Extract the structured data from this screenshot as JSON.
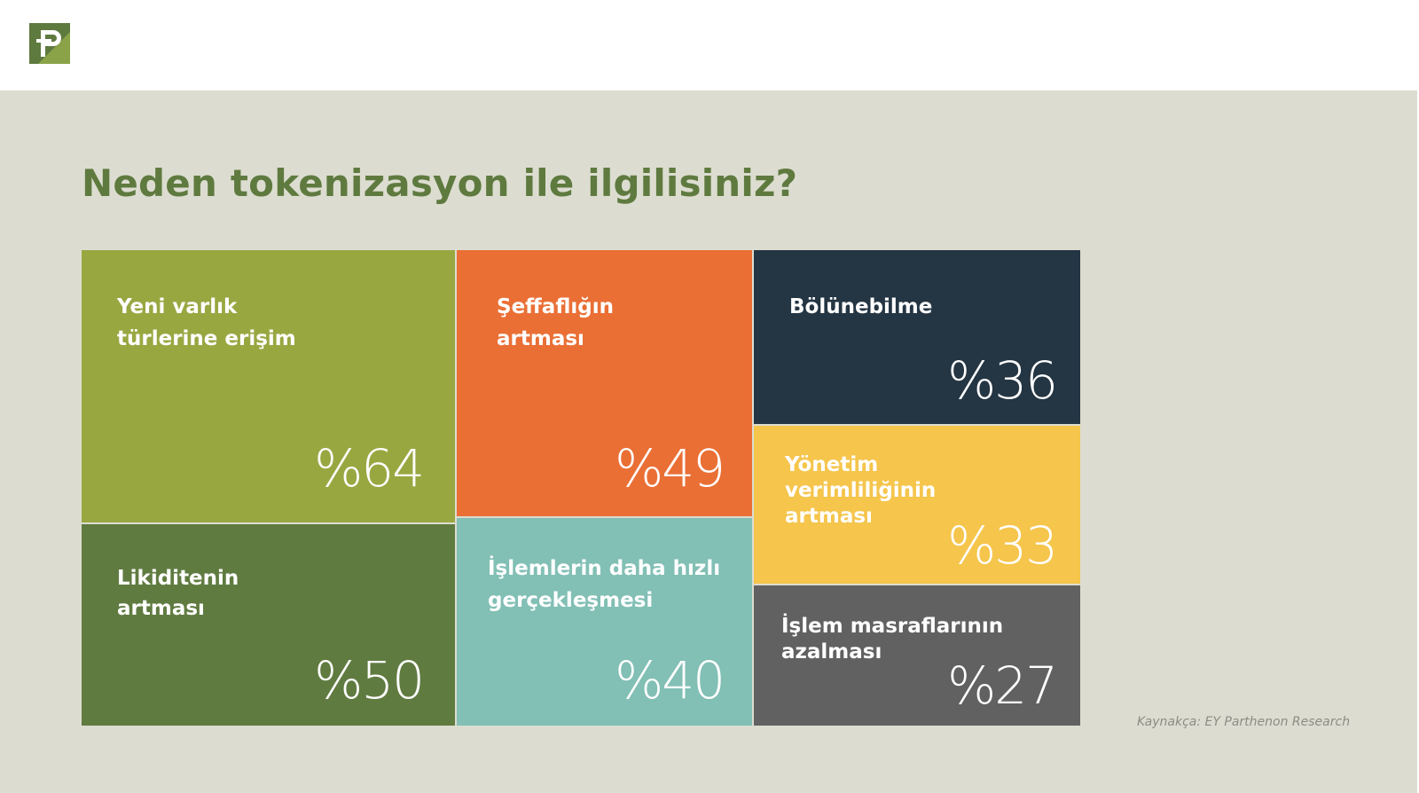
{
  "title": "Neden tokenizasyon ile ilgilisiniz?",
  "source": "Kaynakça: EY Parthenon Research",
  "logo": {
    "icon": "parthenon-p-logo",
    "colors": [
      "#5f7a3f",
      "#8aa348"
    ]
  },
  "colors": {
    "background": "#dcddd0",
    "header": "#ffffff",
    "title": "#5f7a3f",
    "source": "#8b8c85"
  },
  "chart_data": {
    "type": "treemap",
    "title": "Neden tokenizasyon ile ilgilisiniz?",
    "unit": "%",
    "categories": [
      "Yeni varlık türlerine erişim",
      "Likiditenin artması",
      "Şeffaflığın artması",
      "İşlemlerin daha hızlı gerçekleşmesi",
      "Bölünebilme",
      "Yönetim verimliliğinin artması",
      "İşlem masraflarının azalması"
    ],
    "values": [
      64,
      50,
      49,
      40,
      36,
      33,
      27
    ],
    "tiles": [
      {
        "key": "yeni-varlik",
        "label_lines": [
          "Yeni varlık",
          "türlerine erişim"
        ],
        "value": 64,
        "value_label": "%64",
        "color": "#99a741"
      },
      {
        "key": "likidite",
        "label_lines": [
          "Likiditenin",
          "artması"
        ],
        "value": 50,
        "value_label": "%50",
        "color": "#607b40"
      },
      {
        "key": "seffaflik",
        "label_lines": [
          "Şeffaflığın",
          "artması"
        ],
        "value": 49,
        "value_label": "%49",
        "color": "#ea6f35"
      },
      {
        "key": "hizli-islem",
        "label_lines": [
          "İşlemlerin daha hızlı",
          "gerçekleşmesi"
        ],
        "value": 40,
        "value_label": "%40",
        "color": "#82bfb5"
      },
      {
        "key": "bolunebilme",
        "label_lines": [
          "Bölünebilme"
        ],
        "value": 36,
        "value_label": "%36",
        "color": "#243543"
      },
      {
        "key": "yonetim",
        "label_lines": [
          "Yönetim",
          "verimliliğinin",
          "artması"
        ],
        "value": 33,
        "value_label": "%33",
        "color": "#f5c54c"
      },
      {
        "key": "masraf",
        "label_lines": [
          "İşlem masraflarının",
          "azalması"
        ],
        "value": 27,
        "value_label": "%27",
        "color": "#616161"
      }
    ]
  }
}
